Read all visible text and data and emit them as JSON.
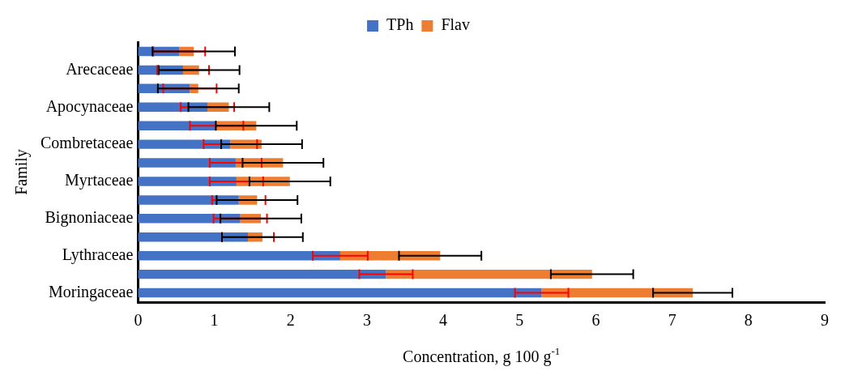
{
  "chart_data": {
    "type": "bar",
    "orientation": "horizontal",
    "stacked": true,
    "xlabel": "Concentration, g 100 g$^{-1}$",
    "ylabel": "Family",
    "categories": [
      null,
      "Arecaceae",
      null,
      "Apocynaceae",
      null,
      "Combretaceae",
      null,
      "Myrtaceae",
      null,
      "Bignoniaceae",
      null,
      "Lythraceae",
      null,
      "Moringaceae"
    ],
    "series": [
      {
        "name": "TPh",
        "color": "#4472c4",
        "values": [
          0.54,
          0.59,
          0.68,
          0.91,
          1.03,
          1.21,
          1.28,
          1.29,
          1.32,
          1.34,
          1.44,
          2.65,
          3.25,
          5.29
        ],
        "errors": [
          0.34,
          0.34,
          0.35,
          0.35,
          0.35,
          0.35,
          0.34,
          0.35,
          0.35,
          0.35,
          0.34,
          0.36,
          0.35,
          0.35
        ]
      },
      {
        "name": "Flav",
        "color": "#ed7d31",
        "values": [
          0.19,
          0.21,
          0.11,
          0.28,
          0.52,
          0.41,
          0.62,
          0.7,
          0.24,
          0.27,
          0.19,
          1.31,
          2.7,
          1.98
        ],
        "errors": [
          0.54,
          0.53,
          0.53,
          0.53,
          0.53,
          0.53,
          0.53,
          0.53,
          0.53,
          0.53,
          0.53,
          0.54,
          0.54,
          0.52
        ]
      }
    ],
    "xlim": [
      0,
      9
    ],
    "xticks": [
      0,
      1,
      2,
      3,
      4,
      5,
      6,
      7,
      8,
      9
    ],
    "grid": false,
    "legend": "top"
  }
}
